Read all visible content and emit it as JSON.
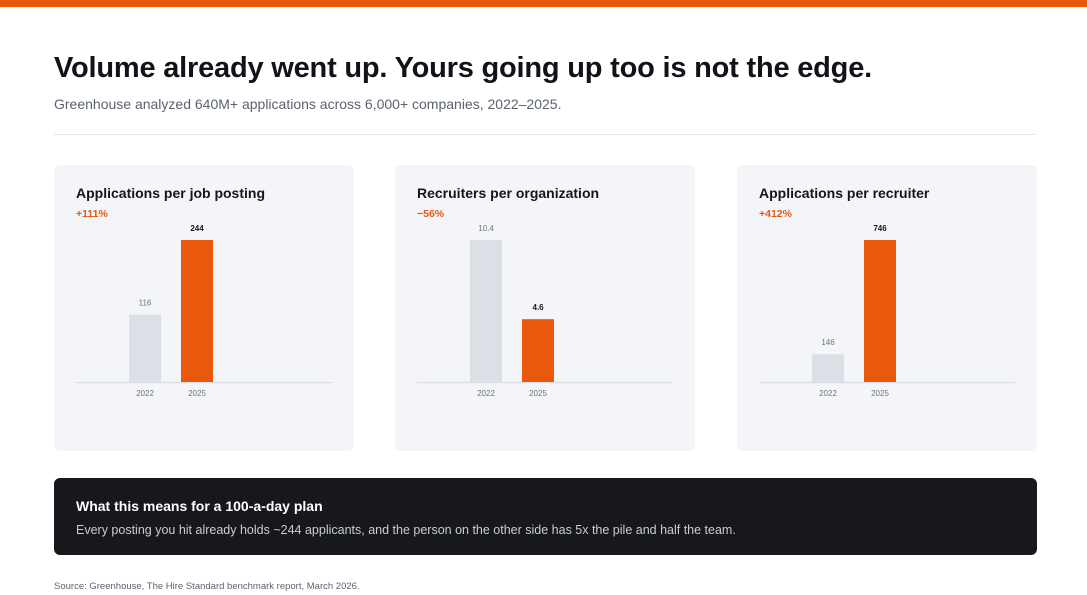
{
  "header": {
    "title": "Volume already went up. Yours going up too is not the edge.",
    "subtitle": "Greenhouse analyzed 640M+ applications across 6,000+ companies, 2022–2025."
  },
  "colors": {
    "accent": "#e8590c",
    "baseline_bar": "#dcdfe5",
    "card_bg": "#f4f5f8",
    "callout_bg": "#17181c"
  },
  "chart_data": [
    {
      "type": "bar",
      "title": "Applications per job posting",
      "change": "+111%",
      "categories": [
        "2022",
        "2025"
      ],
      "values": [
        116,
        244
      ],
      "value_labels": [
        "116",
        "244"
      ],
      "ylim": [
        0,
        244
      ],
      "grid": false
    },
    {
      "type": "bar",
      "title": "Recruiters per organization",
      "change": "−56%",
      "categories": [
        "2022",
        "2025"
      ],
      "values": [
        10.4,
        4.6
      ],
      "value_labels": [
        "10.4",
        "4.6"
      ],
      "ylim": [
        0,
        10.4
      ],
      "grid": false
    },
    {
      "type": "bar",
      "title": "Applications per recruiter",
      "change": "+412%",
      "categories": [
        "2022",
        "2025"
      ],
      "values": [
        146,
        746
      ],
      "value_labels": [
        "146",
        "746"
      ],
      "ylim": [
        0,
        746
      ],
      "grid": false
    }
  ],
  "callout": {
    "title": "What this means for a 100-a-day plan",
    "body": "Every posting you hit already holds ~244 applicants, and the person on the other side has 5x the pile and half the team."
  },
  "source": "Source: Greenhouse, The Hire Standard benchmark report, March 2026."
}
